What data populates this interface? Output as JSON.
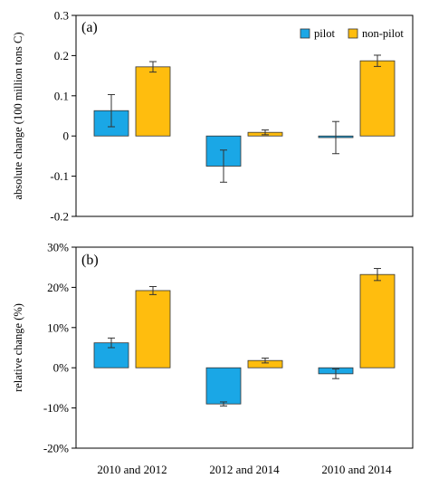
{
  "legend": {
    "pilot": "pilot",
    "nonpilot": "non-pilot"
  },
  "colors": {
    "pilot": "#1aa7e6",
    "nonpilot": "#ffbd0e",
    "edge": "#333333"
  },
  "chart_data": [
    {
      "type": "bar",
      "panel_label": "(a)",
      "ylabel": "absolute change  (100 million tons C)",
      "ylim": [
        -0.2,
        0.3
      ],
      "yticks": [
        "-0.2",
        "-0.1",
        "0",
        "0.1",
        "0.2",
        "0.3"
      ],
      "ytick_values": [
        -0.2,
        -0.1,
        0,
        0.1,
        0.2,
        0.3
      ],
      "categories": [
        "2010 and 2012",
        "2012 and 2014",
        "2010 and 2014"
      ],
      "legend_position": "top-right",
      "series": [
        {
          "name": "pilot",
          "values": [
            0.063,
            -0.075,
            -0.004
          ],
          "errors": [
            0.04,
            0.04,
            0.04
          ]
        },
        {
          "name": "non-pilot",
          "values": [
            0.172,
            0.009,
            0.187
          ],
          "errors": [
            0.013,
            0.006,
            0.014
          ]
        }
      ]
    },
    {
      "type": "bar",
      "panel_label": "(b)",
      "ylabel": "relative change  (%)",
      "ylim": [
        -20,
        30
      ],
      "yticks": [
        "-20%",
        "-10%",
        "0%",
        "10%",
        "20%",
        "30%"
      ],
      "ytick_values": [
        -20,
        -10,
        0,
        10,
        20,
        30
      ],
      "categories": [
        "2010 and 2012",
        "2012 and 2014",
        "2010 and 2014"
      ],
      "series": [
        {
          "name": "pilot",
          "values": [
            6.2,
            -9.0,
            -1.5
          ],
          "errors": [
            1.2,
            0.5,
            1.2
          ]
        },
        {
          "name": "non-pilot",
          "values": [
            19.2,
            1.8,
            23.2
          ],
          "errors": [
            1.0,
            0.6,
            1.5
          ]
        }
      ]
    }
  ]
}
